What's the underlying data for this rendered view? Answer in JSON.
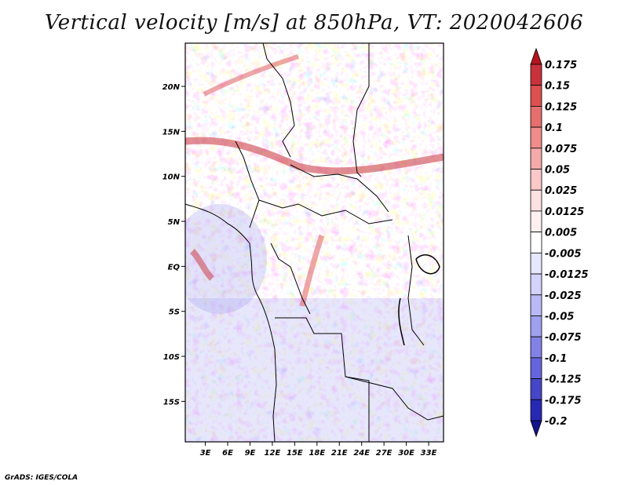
{
  "title": "Vertical velocity [m/s] at 850hPa, VT: 2020042606",
  "credit": "GrADS: IGES/COLA",
  "map": {
    "region": "Central Africa",
    "lat_ticks": [
      "20N",
      "15N",
      "10N",
      "5N",
      "EQ",
      "5S",
      "10S",
      "15S"
    ],
    "lat_values": [
      20,
      15,
      10,
      5,
      0,
      -5,
      -10,
      -15
    ],
    "lon_ticks": [
      "3E",
      "6E",
      "9E",
      "12E",
      "15E",
      "18E",
      "21E",
      "24E",
      "27E",
      "30E",
      "33E"
    ],
    "lon_values": [
      3,
      6,
      9,
      12,
      15,
      18,
      21,
      24,
      27,
      30,
      33
    ],
    "lon_range": [
      0.3,
      35
    ],
    "lat_range": [
      -19.5,
      24.8
    ]
  },
  "colorbar": {
    "labels": [
      "0.175",
      "0.15",
      "0.125",
      "0.1",
      "0.075",
      "0.05",
      "0.025",
      "0.0125",
      "0.005",
      "-0.005",
      "-0.0125",
      "-0.025",
      "-0.05",
      "-0.075",
      "-0.1",
      "-0.125",
      "-0.175",
      "-0.2"
    ],
    "colors": [
      "#b4141e",
      "#c8323c",
      "#dc5050",
      "#e66e6e",
      "#f08c8c",
      "#f5aaaa",
      "#fac8c8",
      "#fde1e1",
      "#fff0f0",
      "#ffffff",
      "#e6e6ff",
      "#d2d2fa",
      "#b9b9f5",
      "#a0a0f0",
      "#8282e6",
      "#6464dc",
      "#4646c8",
      "#2828b4",
      "#14148c"
    ]
  },
  "style": {
    "frame_color": "#000000",
    "boundary_color": "#000000"
  }
}
